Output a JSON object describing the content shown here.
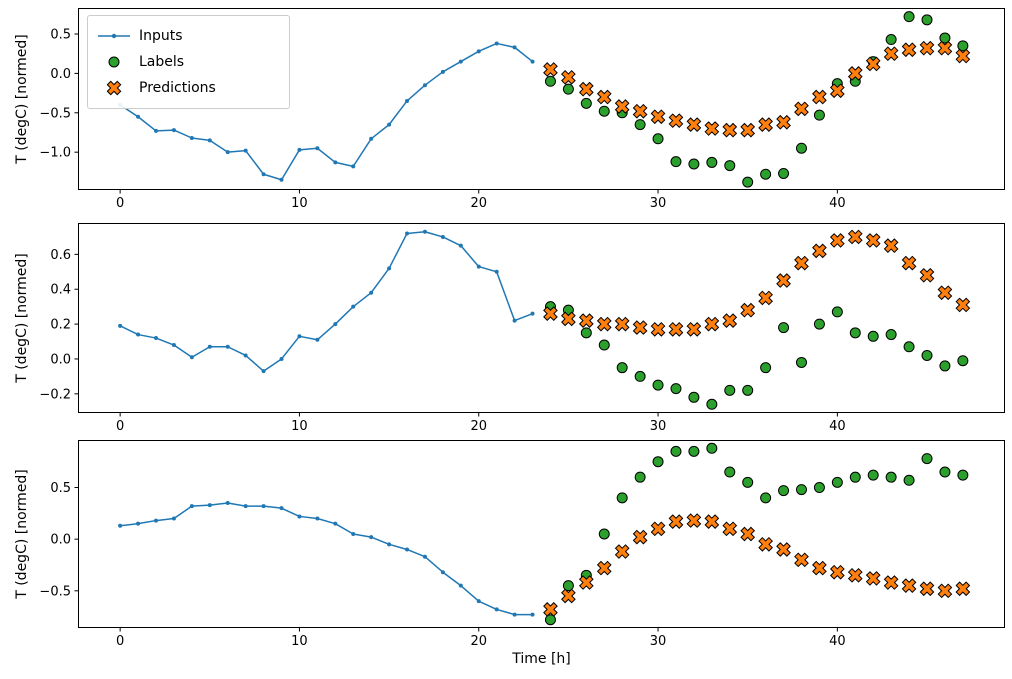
{
  "figure": {
    "background": "#ffffff"
  },
  "colors": {
    "inputs": "#1f77b4",
    "labels": "#2ca02c",
    "predictions": "#ff7f0e",
    "marker_edge": "#000000",
    "axis": "#000000"
  },
  "legend": {
    "position": "upper-left-of-first-subplot",
    "items": [
      {
        "label": "Inputs",
        "marker": "line-dot",
        "color": "#1f77b4"
      },
      {
        "label": "Labels",
        "marker": "circle",
        "color": "#2ca02c"
      },
      {
        "label": "Predictions",
        "marker": "x",
        "color": "#ff7f0e"
      }
    ]
  },
  "chart_data": [
    {
      "type": "line",
      "title": "",
      "xlabel": "",
      "ylabel": "T (degC) [normed]",
      "xlim": [
        -2.35,
        49.35
      ],
      "ylim": [
        -1.48,
        0.83
      ],
      "xticks": [
        0,
        10,
        20,
        30,
        40
      ],
      "yticks": [
        -1.0,
        -0.5,
        0.0,
        0.5
      ],
      "grid": false,
      "series": [
        {
          "name": "Inputs",
          "type": "line",
          "color": "#1f77b4",
          "x": [
            0,
            1,
            2,
            3,
            4,
            5,
            6,
            7,
            8,
            9,
            10,
            11,
            12,
            13,
            14,
            15,
            16,
            17,
            18,
            19,
            20,
            21,
            22,
            23
          ],
          "values": [
            -0.4,
            -0.55,
            -0.73,
            -0.72,
            -0.82,
            -0.85,
            -1.0,
            -0.98,
            -1.28,
            -1.35,
            -0.97,
            -0.95,
            -1.13,
            -1.18,
            -0.83,
            -0.65,
            -0.35,
            -0.15,
            0.02,
            0.15,
            0.28,
            0.38,
            0.33,
            0.15
          ]
        },
        {
          "name": "Labels",
          "type": "scatter-circle",
          "color": "#2ca02c",
          "x": [
            24,
            25,
            26,
            27,
            28,
            29,
            30,
            31,
            32,
            33,
            34,
            35,
            36,
            37,
            38,
            39,
            40,
            41,
            42,
            43,
            44,
            45,
            46,
            47
          ],
          "values": [
            -0.1,
            -0.2,
            -0.38,
            -0.48,
            -0.5,
            -0.65,
            -0.83,
            -1.12,
            -1.15,
            -1.13,
            -1.17,
            -1.38,
            -1.28,
            -1.27,
            -0.95,
            -0.53,
            -0.13,
            -0.1,
            0.15,
            0.43,
            0.72,
            0.68,
            0.45,
            0.35
          ]
        },
        {
          "name": "Predictions",
          "type": "scatter-x",
          "color": "#ff7f0e",
          "x": [
            24,
            25,
            26,
            27,
            28,
            29,
            30,
            31,
            32,
            33,
            34,
            35,
            36,
            37,
            38,
            39,
            40,
            41,
            42,
            43,
            44,
            45,
            46,
            47
          ],
          "values": [
            0.05,
            -0.05,
            -0.2,
            -0.3,
            -0.42,
            -0.48,
            -0.55,
            -0.6,
            -0.65,
            -0.7,
            -0.72,
            -0.72,
            -0.65,
            -0.62,
            -0.45,
            -0.3,
            -0.22,
            0.0,
            0.12,
            0.25,
            0.3,
            0.32,
            0.32,
            0.22
          ]
        }
      ]
    },
    {
      "type": "line",
      "title": "",
      "xlabel": "",
      "ylabel": "T (degC) [normed]",
      "xlim": [
        -2.35,
        49.35
      ],
      "ylim": [
        -0.31,
        0.78
      ],
      "xticks": [
        0,
        10,
        20,
        30,
        40
      ],
      "yticks": [
        -0.2,
        0.0,
        0.2,
        0.4,
        0.6
      ],
      "grid": false,
      "series": [
        {
          "name": "Inputs",
          "type": "line",
          "color": "#1f77b4",
          "x": [
            0,
            1,
            2,
            3,
            4,
            5,
            6,
            7,
            8,
            9,
            10,
            11,
            12,
            13,
            14,
            15,
            16,
            17,
            18,
            19,
            20,
            21,
            22,
            23
          ],
          "values": [
            0.19,
            0.14,
            0.12,
            0.08,
            0.01,
            0.07,
            0.07,
            0.02,
            -0.07,
            0.0,
            0.13,
            0.11,
            0.2,
            0.3,
            0.38,
            0.52,
            0.72,
            0.73,
            0.7,
            0.65,
            0.53,
            0.5,
            0.22,
            0.26
          ]
        },
        {
          "name": "Labels",
          "type": "scatter-circle",
          "color": "#2ca02c",
          "x": [
            24,
            25,
            26,
            27,
            28,
            29,
            30,
            31,
            32,
            33,
            34,
            35,
            36,
            37,
            38,
            39,
            40,
            41,
            42,
            43,
            44,
            45,
            46,
            47
          ],
          "values": [
            0.3,
            0.28,
            0.15,
            0.08,
            -0.05,
            -0.1,
            -0.15,
            -0.17,
            -0.22,
            -0.26,
            -0.18,
            -0.18,
            -0.05,
            0.18,
            -0.02,
            0.2,
            0.27,
            0.15,
            0.13,
            0.14,
            0.07,
            0.02,
            -0.04,
            -0.01
          ]
        },
        {
          "name": "Predictions",
          "type": "scatter-x",
          "color": "#ff7f0e",
          "x": [
            24,
            25,
            26,
            27,
            28,
            29,
            30,
            31,
            32,
            33,
            34,
            35,
            36,
            37,
            38,
            39,
            40,
            41,
            42,
            43,
            44,
            45,
            46,
            47
          ],
          "values": [
            0.26,
            0.23,
            0.22,
            0.2,
            0.2,
            0.18,
            0.17,
            0.17,
            0.17,
            0.2,
            0.22,
            0.28,
            0.35,
            0.45,
            0.55,
            0.62,
            0.68,
            0.7,
            0.68,
            0.65,
            0.55,
            0.48,
            0.38,
            0.31
          ]
        }
      ]
    },
    {
      "type": "line",
      "title": "",
      "xlabel": "Time [h]",
      "ylabel": "T (degC) [normed]",
      "xlim": [
        -2.35,
        49.35
      ],
      "ylim": [
        -0.86,
        0.96
      ],
      "xticks": [
        0,
        10,
        20,
        30,
        40
      ],
      "yticks": [
        -0.5,
        0.0,
        0.5
      ],
      "grid": false,
      "series": [
        {
          "name": "Inputs",
          "type": "line",
          "color": "#1f77b4",
          "x": [
            0,
            1,
            2,
            3,
            4,
            5,
            6,
            7,
            8,
            9,
            10,
            11,
            12,
            13,
            14,
            15,
            16,
            17,
            18,
            19,
            20,
            21,
            22,
            23
          ],
          "values": [
            0.13,
            0.15,
            0.18,
            0.2,
            0.32,
            0.33,
            0.35,
            0.32,
            0.32,
            0.3,
            0.22,
            0.2,
            0.15,
            0.05,
            0.02,
            -0.05,
            -0.1,
            -0.17,
            -0.32,
            -0.45,
            -0.6,
            -0.68,
            -0.73,
            -0.73
          ]
        },
        {
          "name": "Labels",
          "type": "scatter-circle",
          "color": "#2ca02c",
          "x": [
            24,
            25,
            26,
            27,
            28,
            29,
            30,
            31,
            32,
            33,
            34,
            35,
            36,
            37,
            38,
            39,
            40,
            41,
            42,
            43,
            44,
            45,
            46,
            47
          ],
          "values": [
            -0.78,
            -0.45,
            -0.35,
            0.05,
            0.4,
            0.6,
            0.75,
            0.85,
            0.85,
            0.88,
            0.65,
            0.55,
            0.4,
            0.47,
            0.48,
            0.5,
            0.55,
            0.6,
            0.62,
            0.6,
            0.57,
            0.78,
            0.65,
            0.62
          ]
        },
        {
          "name": "Predictions",
          "type": "scatter-x",
          "color": "#ff7f0e",
          "x": [
            24,
            25,
            26,
            27,
            28,
            29,
            30,
            31,
            32,
            33,
            34,
            35,
            36,
            37,
            38,
            39,
            40,
            41,
            42,
            43,
            44,
            45,
            46,
            47
          ],
          "values": [
            -0.68,
            -0.55,
            -0.42,
            -0.28,
            -0.12,
            0.02,
            0.1,
            0.17,
            0.18,
            0.17,
            0.1,
            0.05,
            -0.05,
            -0.1,
            -0.2,
            -0.28,
            -0.32,
            -0.35,
            -0.38,
            -0.42,
            -0.45,
            -0.48,
            -0.5,
            -0.48
          ]
        }
      ]
    }
  ]
}
